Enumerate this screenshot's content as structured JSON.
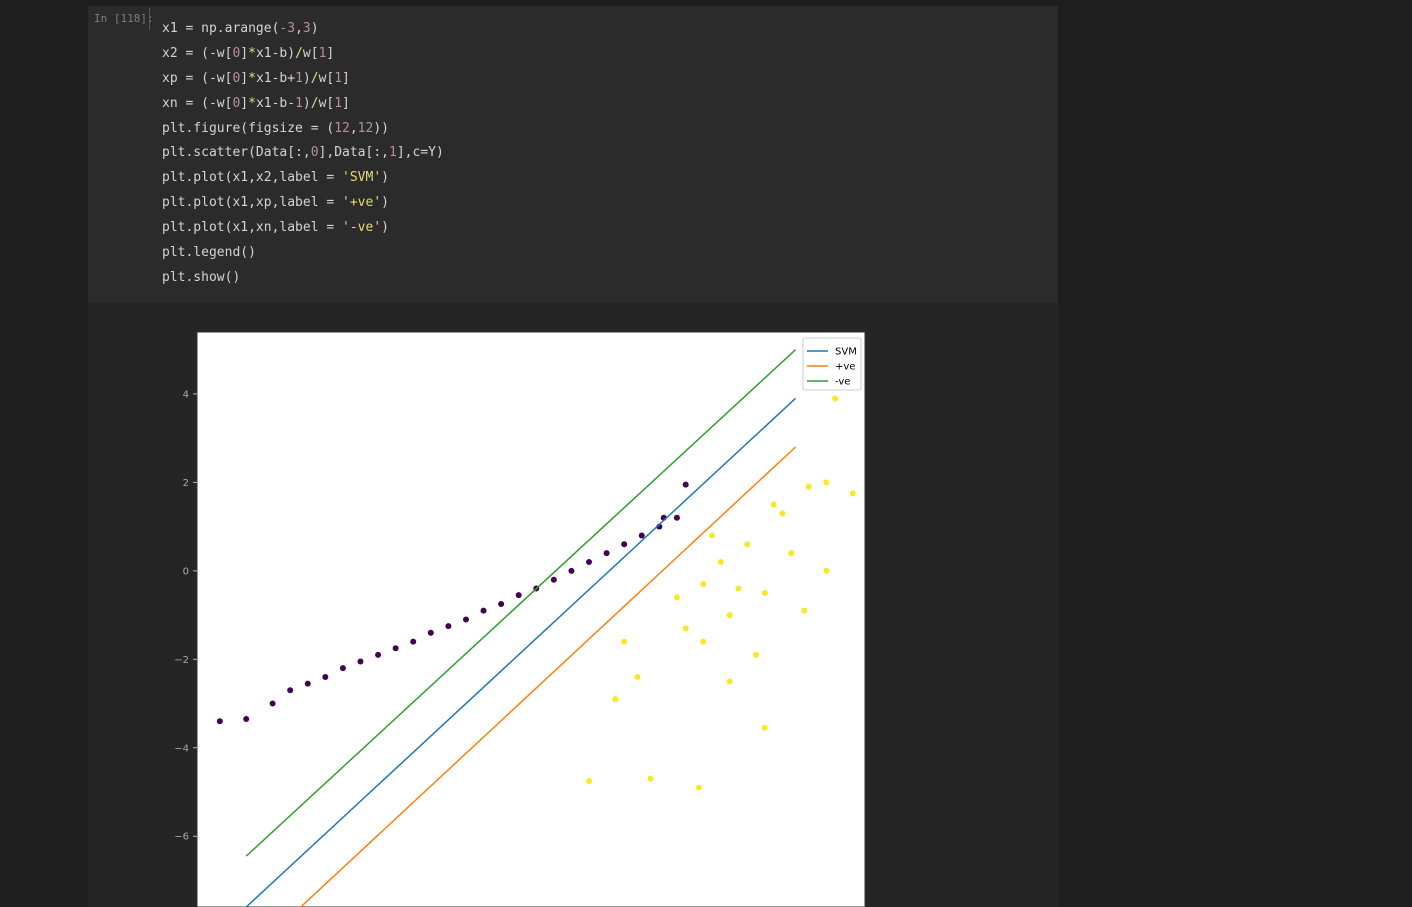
{
  "cell": {
    "prompt": "In [118]:",
    "code_lines": [
      [
        {
          "t": "x1 = np.arange(",
          "c": "#d4d4d4"
        },
        {
          "t": "-3",
          "c": "#b48ead"
        },
        {
          "t": ",",
          "c": "#d4d4d4"
        },
        {
          "t": "3",
          "c": "#b48ead"
        },
        {
          "t": ")",
          "c": "#d4d4d4"
        }
      ],
      [
        {
          "t": "x2 = (-w[",
          "c": "#d4d4d4"
        },
        {
          "t": "0",
          "c": "#b48ead"
        },
        {
          "t": "]",
          "c": "#d4d4d4"
        },
        {
          "t": "*",
          "c": "#c3e88d"
        },
        {
          "t": "x1-b)",
          "c": "#d4d4d4"
        },
        {
          "t": "/",
          "c": "#c3e88d"
        },
        {
          "t": "w[",
          "c": "#d4d4d4"
        },
        {
          "t": "1",
          "c": "#b48ead"
        },
        {
          "t": "]",
          "c": "#d4d4d4"
        }
      ],
      [
        {
          "t": "xp = (-w[",
          "c": "#d4d4d4"
        },
        {
          "t": "0",
          "c": "#b48ead"
        },
        {
          "t": "]",
          "c": "#d4d4d4"
        },
        {
          "t": "*",
          "c": "#c3e88d"
        },
        {
          "t": "x1-b+",
          "c": "#d4d4d4"
        },
        {
          "t": "1",
          "c": "#b48ead"
        },
        {
          "t": ")",
          "c": "#d4d4d4"
        },
        {
          "t": "/",
          "c": "#c3e88d"
        },
        {
          "t": "w[",
          "c": "#d4d4d4"
        },
        {
          "t": "1",
          "c": "#b48ead"
        },
        {
          "t": "]",
          "c": "#d4d4d4"
        }
      ],
      [
        {
          "t": "xn = (-w[",
          "c": "#d4d4d4"
        },
        {
          "t": "0",
          "c": "#b48ead"
        },
        {
          "t": "]",
          "c": "#d4d4d4"
        },
        {
          "t": "*",
          "c": "#c3e88d"
        },
        {
          "t": "x1-b-",
          "c": "#d4d4d4"
        },
        {
          "t": "1",
          "c": "#b48ead"
        },
        {
          "t": ")",
          "c": "#d4d4d4"
        },
        {
          "t": "/",
          "c": "#c3e88d"
        },
        {
          "t": "w[",
          "c": "#d4d4d4"
        },
        {
          "t": "1",
          "c": "#b48ead"
        },
        {
          "t": "]",
          "c": "#d4d4d4"
        }
      ],
      [
        {
          "t": "plt.figure(figsize = (",
          "c": "#d4d4d4"
        },
        {
          "t": "12",
          "c": "#b48ead"
        },
        {
          "t": ",",
          "c": "#d4d4d4"
        },
        {
          "t": "12",
          "c": "#b48ead"
        },
        {
          "t": "))",
          "c": "#d4d4d4"
        }
      ],
      [
        {
          "t": "plt.scatter(Data[:,",
          "c": "#d4d4d4"
        },
        {
          "t": "0",
          "c": "#b48ead"
        },
        {
          "t": "],Data[:,",
          "c": "#d4d4d4"
        },
        {
          "t": "1",
          "c": "#b48ead"
        },
        {
          "t": "],c=Y)",
          "c": "#d4d4d4"
        }
      ],
      [
        {
          "t": "plt.plot(x1,x2,label = ",
          "c": "#d4d4d4"
        },
        {
          "t": "'SVM'",
          "c": "#e6db74"
        },
        {
          "t": ")",
          "c": "#d4d4d4"
        }
      ],
      [
        {
          "t": "plt.plot(x1,xp,label = ",
          "c": "#d4d4d4"
        },
        {
          "t": "'+ve'",
          "c": "#e6db74"
        },
        {
          "t": ")",
          "c": "#d4d4d4"
        }
      ],
      [
        {
          "t": "plt.plot(x1,xn,label = ",
          "c": "#d4d4d4"
        },
        {
          "t": "'-ve'",
          "c": "#e6db74"
        },
        {
          "t": ")",
          "c": "#d4d4d4"
        }
      ],
      [
        {
          "t": "plt.legend()",
          "c": "#d4d4d4"
        }
      ],
      [
        {
          "t": "plt.show()",
          "c": "#d4d4d4"
        }
      ]
    ]
  },
  "chart_data": {
    "type": "scatter",
    "x_visible": [
      -3.56,
      4.04
    ],
    "ylim": [
      -7.6,
      5.4
    ],
    "yticks": [
      4,
      2,
      0,
      -2,
      -4,
      -6
    ],
    "legend": {
      "placement": "top-right",
      "entries": [
        "SVM",
        "+ve",
        "-ve"
      ]
    },
    "series": [
      {
        "name": "SVM",
        "type": "line",
        "color": "#1f77b4",
        "x": [
          -3,
          3.25
        ],
        "y": [
          -7.6,
          3.9
        ]
      },
      {
        "name": "+ve",
        "type": "line",
        "color": "#ff7f0e",
        "x": [
          -2.38,
          3.25
        ],
        "y": [
          -7.6,
          2.8
        ]
      },
      {
        "name": "-ve",
        "type": "line",
        "color": "#2ca02c",
        "x": [
          -3,
          3.25
        ],
        "y": [
          -6.45,
          5.0
        ]
      },
      {
        "type": "scatter",
        "color": "#440154",
        "class": "0",
        "points": [
          [
            -3.3,
            -3.4
          ],
          [
            -3.0,
            -3.35
          ],
          [
            -2.7,
            -3.0
          ],
          [
            -2.5,
            -2.7
          ],
          [
            -2.3,
            -2.55
          ],
          [
            -2.1,
            -2.4
          ],
          [
            -1.9,
            -2.2
          ],
          [
            -1.7,
            -2.05
          ],
          [
            -1.5,
            -1.9
          ],
          [
            -1.3,
            -1.75
          ],
          [
            -1.1,
            -1.6
          ],
          [
            -0.9,
            -1.4
          ],
          [
            -0.7,
            -1.25
          ],
          [
            -0.5,
            -1.1
          ],
          [
            -0.3,
            -0.9
          ],
          [
            -0.1,
            -0.75
          ],
          [
            0.1,
            -0.55
          ],
          [
            0.3,
            -0.4
          ],
          [
            0.5,
            -0.2
          ],
          [
            0.7,
            0.0
          ],
          [
            0.9,
            0.2
          ],
          [
            1.1,
            0.4
          ],
          [
            1.3,
            0.6
          ],
          [
            1.5,
            0.8
          ],
          [
            1.7,
            1.0
          ],
          [
            1.9,
            1.2
          ],
          [
            2.0,
            1.95
          ],
          [
            1.75,
            1.2
          ]
        ]
      },
      {
        "type": "scatter",
        "color": "#fde725",
        "class": "1",
        "points": [
          [
            0.9,
            -4.75
          ],
          [
            1.6,
            -4.7
          ],
          [
            2.15,
            -4.9
          ],
          [
            1.2,
            -2.9
          ],
          [
            1.45,
            -2.4
          ],
          [
            1.3,
            -1.6
          ],
          [
            1.9,
            -0.6
          ],
          [
            2.0,
            -1.3
          ],
          [
            2.2,
            -0.3
          ],
          [
            2.4,
            0.2
          ],
          [
            2.5,
            -1.0
          ],
          [
            2.7,
            0.6
          ],
          [
            2.9,
            -0.5
          ],
          [
            3.1,
            1.3
          ],
          [
            3.4,
            1.9
          ],
          [
            3.6,
            2.0
          ],
          [
            3.9,
            1.75
          ],
          [
            3.6,
            0.0
          ],
          [
            2.8,
            -1.9
          ],
          [
            2.5,
            -2.5
          ],
          [
            2.9,
            -3.55
          ],
          [
            2.2,
            -1.6
          ],
          [
            2.6,
            -0.4
          ],
          [
            2.3,
            0.8
          ],
          [
            3.0,
            1.5
          ],
          [
            3.2,
            0.4
          ],
          [
            3.35,
            -0.9
          ],
          [
            3.7,
            3.9
          ]
        ]
      }
    ]
  }
}
